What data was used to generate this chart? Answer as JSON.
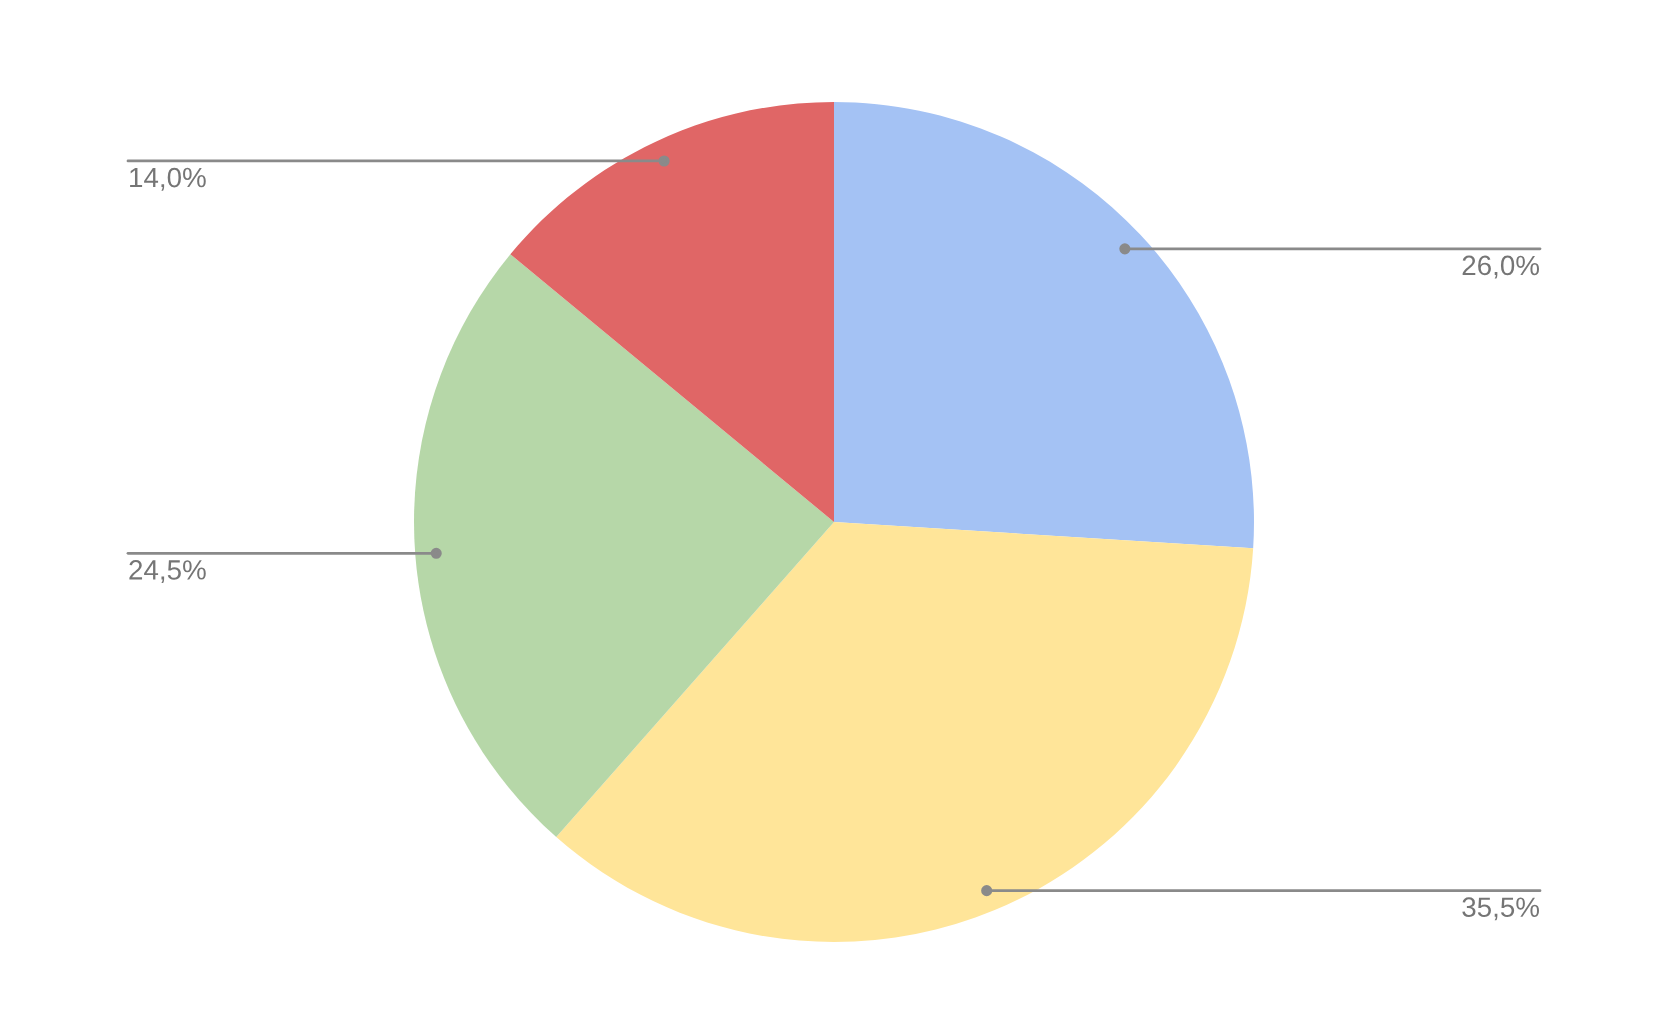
{
  "chart_data": {
    "type": "pie",
    "categories": [
      null,
      null,
      null,
      null
    ],
    "values": [
      26.0,
      35.5,
      24.5,
      14.0
    ],
    "colors": [
      "#a4c2f4",
      "#ffe599",
      "#b6d7a8",
      "#e06666"
    ],
    "value_labels": [
      "26,0%",
      "35,5%",
      "24,5%",
      "14,0%"
    ]
  }
}
